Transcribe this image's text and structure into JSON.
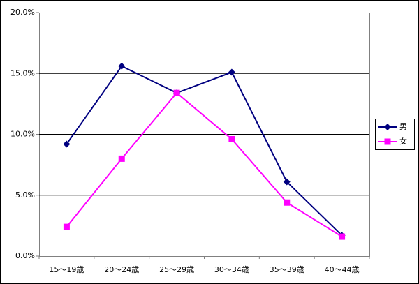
{
  "chart_data": {
    "type": "line",
    "categories": [
      "15～19歳",
      "20～24歳",
      "25～29歳",
      "30～34歳",
      "35～39歳",
      "40～44歳"
    ],
    "series": [
      {
        "name": "男",
        "color": "#000080",
        "marker": "diamond",
        "values": [
          9.2,
          15.6,
          13.4,
          15.1,
          6.1,
          1.7
        ]
      },
      {
        "name": "女",
        "color": "#ff00ff",
        "marker": "square",
        "values": [
          2.4,
          8.0,
          13.4,
          9.6,
          4.4,
          1.6
        ]
      }
    ],
    "ylim": [
      0,
      20
    ],
    "yticks": [
      {
        "value": 0,
        "label": "0.0%"
      },
      {
        "value": 5,
        "label": "5.0%"
      },
      {
        "value": 10,
        "label": "10.0%"
      },
      {
        "value": 15,
        "label": "15.0%"
      },
      {
        "value": 20,
        "label": "20.0%"
      }
    ],
    "grid": true,
    "legend": "right"
  }
}
